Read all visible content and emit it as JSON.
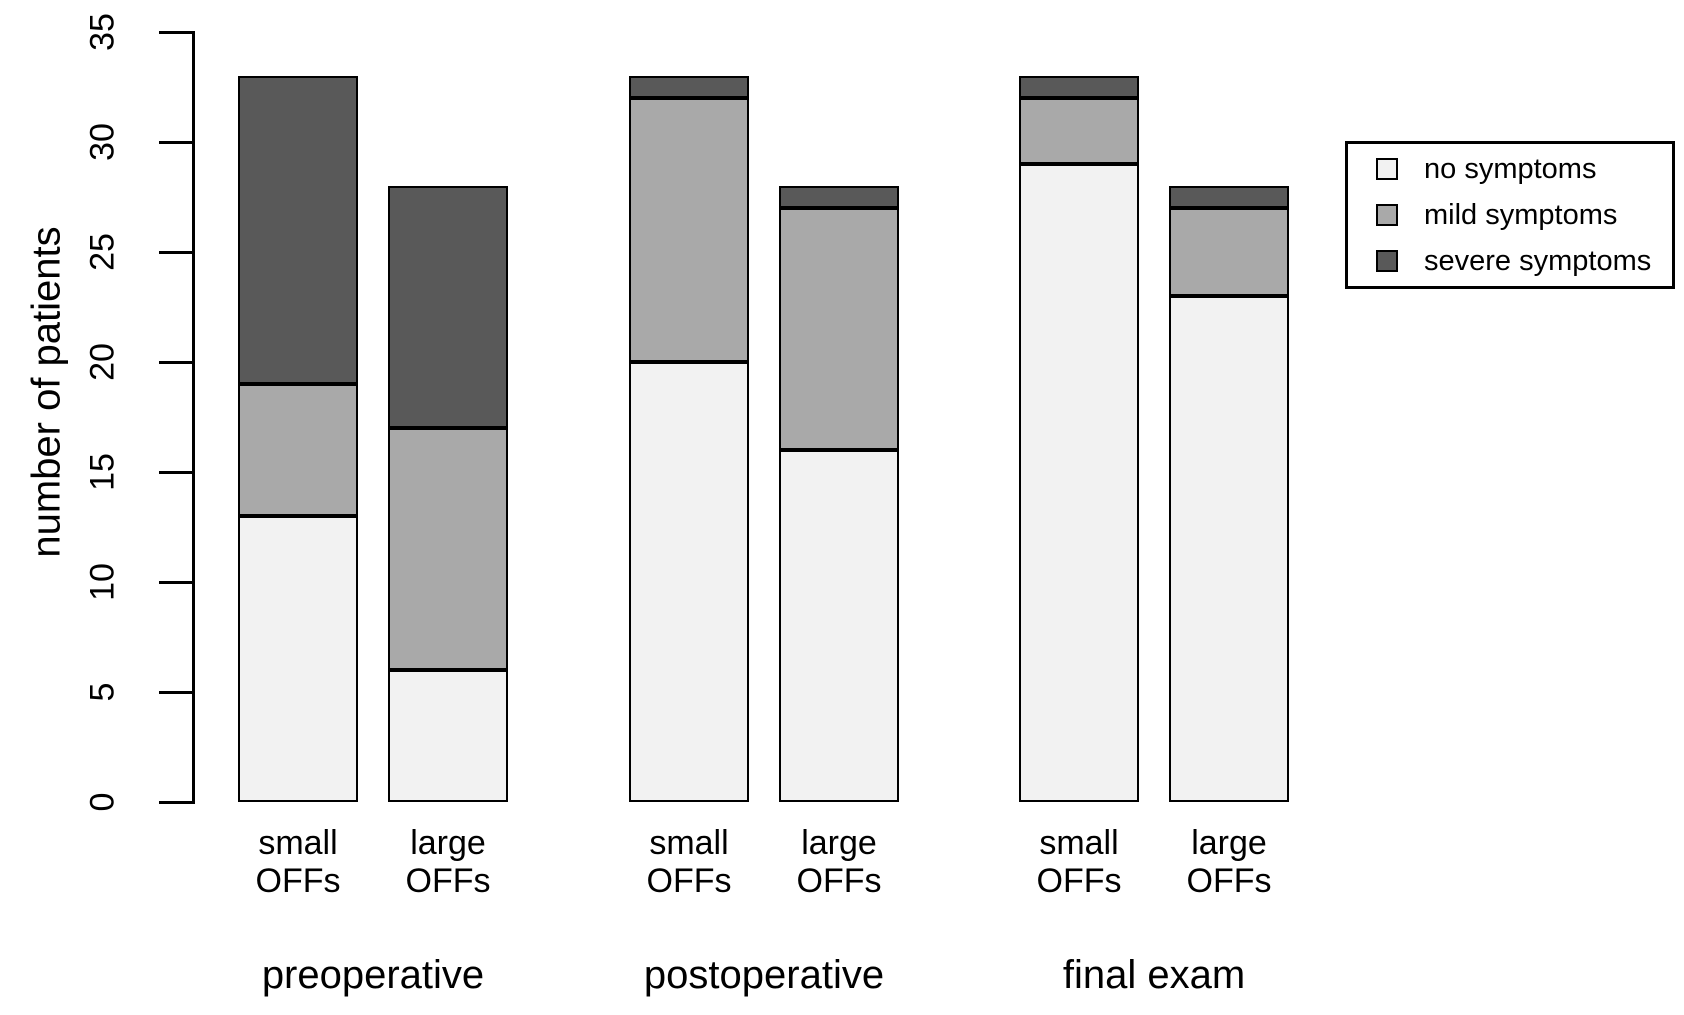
{
  "chart_data": {
    "type": "bar",
    "stacked": true,
    "title": "",
    "ylabel": "number of patients",
    "xlabel": "",
    "ylim": [
      0,
      35
    ],
    "yticks": [
      0,
      5,
      10,
      15,
      20,
      25,
      30,
      35
    ],
    "grid": false,
    "legend_position": "top-right",
    "groups": [
      "preoperative",
      "postoperative",
      "final exam"
    ],
    "bars": [
      {
        "group": "preoperative",
        "label_line1": "small",
        "label_line2": "OFFs"
      },
      {
        "group": "preoperative",
        "label_line1": "large",
        "label_line2": "OFFs"
      },
      {
        "group": "postoperative",
        "label_line1": "small",
        "label_line2": "OFFs"
      },
      {
        "group": "postoperative",
        "label_line1": "large",
        "label_line2": "OFFs"
      },
      {
        "group": "final exam",
        "label_line1": "small",
        "label_line2": "OFFs"
      },
      {
        "group": "final exam",
        "label_line1": "large",
        "label_line2": "OFFs"
      }
    ],
    "series": [
      {
        "name": "no symptoms",
        "color": "#f2f2f2",
        "values": [
          13,
          6,
          20,
          16,
          29,
          23
        ]
      },
      {
        "name": "mild symptoms",
        "color": "#a9a9a9",
        "values": [
          6,
          11,
          12,
          11,
          3,
          4
        ]
      },
      {
        "name": "severe symptoms",
        "color": "#595959",
        "values": [
          14,
          11,
          1,
          1,
          1,
          1
        ]
      }
    ],
    "bar_totals": [
      33,
      28,
      33,
      28,
      33,
      28
    ],
    "colors": {
      "bar_border": "#000000",
      "axis": "#000000",
      "background": "#ffffff"
    }
  }
}
